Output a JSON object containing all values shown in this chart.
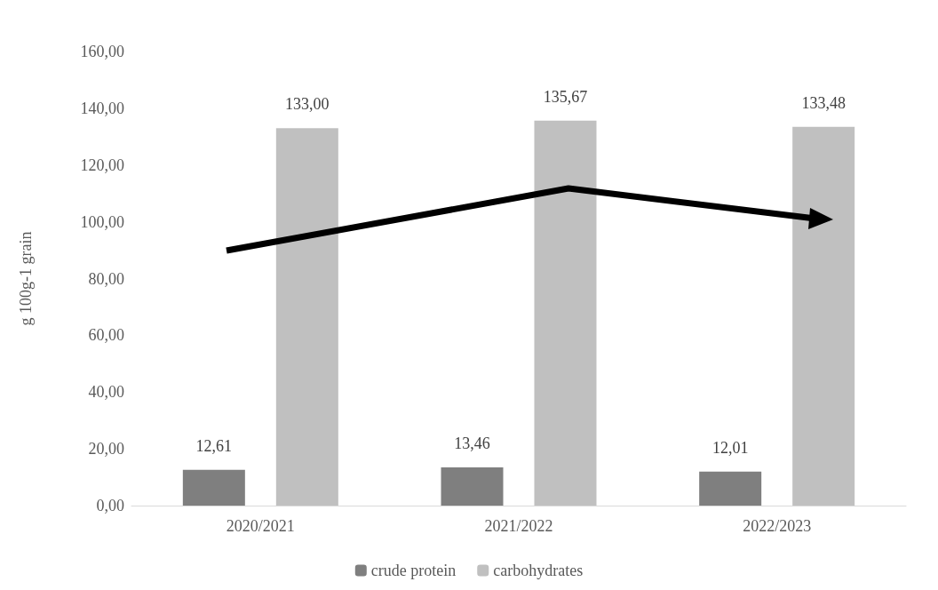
{
  "chart_data": {
    "type": "bar",
    "ylabel": "g 100g-1 grain",
    "categories": [
      "2020/2021",
      "2021/2022",
      "2022/2023"
    ],
    "series": [
      {
        "name": "crude protein",
        "color": "#7f7f7f",
        "values": [
          12.61,
          13.46,
          12.01
        ],
        "value_labels": [
          "12,61",
          "13,46",
          "12,01"
        ]
      },
      {
        "name": "carbohydrates",
        "color": "#c0c0c0",
        "values": [
          133.0,
          135.67,
          133.48
        ],
        "value_labels": [
          "133,00",
          "135,67",
          "133,48"
        ]
      }
    ],
    "ylim": [
      0,
      160
    ],
    "yticks": [
      {
        "value": 0,
        "label": "0,00"
      },
      {
        "value": 20,
        "label": "20,00"
      },
      {
        "value": 40,
        "label": "40,00"
      },
      {
        "value": 60,
        "label": "60,00"
      },
      {
        "value": 80,
        "label": "80,00"
      },
      {
        "value": 100,
        "label": "100,00"
      },
      {
        "value": 120,
        "label": "120,00"
      },
      {
        "value": 140,
        "label": "140,00"
      },
      {
        "value": 160,
        "label": "160,00"
      }
    ],
    "grid": false,
    "legend": "bottom"
  }
}
